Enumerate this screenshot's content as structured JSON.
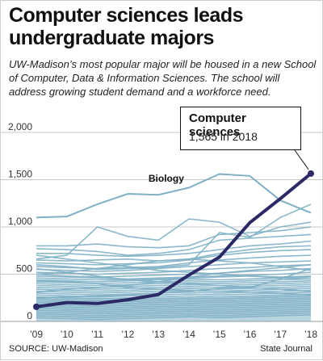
{
  "header": {
    "title": "Computer sciences leads undergraduate majors",
    "subtitle": "UW-Madison’s most popular major will be housed in a new School of Computer, Data & Information Sciences. The school will address growing student demand and a workforce need."
  },
  "footer": {
    "source": "SOURCE: UW-Madison",
    "credit": "State Journal"
  },
  "callout": {
    "title": "Computer sciences",
    "value": "1,565 in 2018"
  },
  "colors": {
    "highlight": "#2b2a66",
    "background_series": "#7fb0c5",
    "grid": "#c8c8c8"
  },
  "chart_data": {
    "type": "line",
    "x": [
      "’09",
      "’10",
      "’11",
      "’12",
      "’13",
      "’14",
      "’15",
      "’16",
      "’17",
      "’18"
    ],
    "ylim": [
      0,
      2000
    ],
    "yticks": [
      0,
      500,
      1000,
      1500,
      2000
    ],
    "ytick_labels": [
      "0",
      "500",
      "1,000",
      "1,500",
      "2,000"
    ],
    "grid": true,
    "highlight_series": {
      "name": "Computer sciences",
      "values": [
        155,
        200,
        190,
        230,
        285,
        490,
        680,
        1045,
        1300,
        1565
      ]
    },
    "labeled_series": {
      "name": "Biology",
      "values": [
        1100,
        1110,
        1240,
        1350,
        1340,
        1415,
        1560,
        1540,
        1280,
        1150
      ]
    },
    "other_series": [
      [
        660,
        700,
        1000,
        900,
        860,
        1085,
        1050,
        900,
        1000,
        1050
      ],
      [
        600,
        580,
        550,
        560,
        570,
        600,
        940,
        890,
        1100,
        1240
      ],
      [
        800,
        800,
        820,
        790,
        780,
        800,
        920,
        940,
        960,
        1000
      ],
      [
        770,
        760,
        740,
        700,
        720,
        760,
        860,
        880,
        900,
        920
      ],
      [
        720,
        720,
        700,
        690,
        700,
        720,
        760,
        800,
        820,
        850
      ],
      [
        650,
        640,
        650,
        660,
        640,
        660,
        720,
        760,
        790,
        800
      ],
      [
        620,
        610,
        600,
        610,
        620,
        650,
        700,
        730,
        750,
        760
      ],
      [
        580,
        570,
        560,
        570,
        580,
        620,
        650,
        670,
        690,
        700
      ],
      [
        550,
        540,
        530,
        540,
        560,
        580,
        600,
        620,
        630,
        640
      ],
      [
        520,
        510,
        500,
        510,
        520,
        540,
        560,
        570,
        590,
        600
      ],
      [
        500,
        480,
        470,
        480,
        490,
        500,
        510,
        530,
        540,
        560
      ],
      [
        480,
        470,
        460,
        450,
        460,
        470,
        480,
        490,
        500,
        520
      ],
      [
        460,
        450,
        440,
        440,
        450,
        460,
        470,
        480,
        470,
        480
      ],
      [
        440,
        430,
        420,
        430,
        440,
        450,
        440,
        450,
        460,
        470
      ],
      [
        420,
        410,
        400,
        410,
        420,
        430,
        420,
        430,
        440,
        450
      ],
      [
        400,
        390,
        380,
        390,
        400,
        410,
        400,
        410,
        420,
        430
      ],
      [
        380,
        370,
        360,
        370,
        380,
        390,
        380,
        390,
        400,
        410
      ],
      [
        360,
        350,
        340,
        350,
        360,
        370,
        360,
        370,
        380,
        390
      ],
      [
        340,
        330,
        320,
        330,
        340,
        350,
        340,
        350,
        360,
        370
      ],
      [
        320,
        310,
        300,
        310,
        320,
        330,
        320,
        330,
        340,
        350
      ],
      [
        300,
        290,
        280,
        290,
        300,
        310,
        300,
        310,
        320,
        330
      ],
      [
        280,
        270,
        260,
        270,
        280,
        290,
        280,
        290,
        300,
        310
      ],
      [
        260,
        250,
        240,
        250,
        260,
        270,
        260,
        270,
        280,
        290
      ],
      [
        240,
        230,
        220,
        230,
        240,
        250,
        240,
        250,
        260,
        270
      ],
      [
        220,
        210,
        200,
        210,
        220,
        230,
        220,
        230,
        240,
        250
      ],
      [
        200,
        190,
        180,
        190,
        200,
        210,
        200,
        210,
        220,
        230
      ],
      [
        180,
        170,
        160,
        170,
        180,
        190,
        180,
        190,
        200,
        210
      ],
      [
        160,
        150,
        140,
        150,
        160,
        170,
        160,
        170,
        180,
        190
      ],
      [
        140,
        130,
        120,
        130,
        140,
        150,
        140,
        150,
        160,
        170
      ],
      [
        120,
        110,
        100,
        110,
        120,
        130,
        120,
        130,
        140,
        150
      ],
      [
        100,
        90,
        80,
        90,
        100,
        110,
        100,
        110,
        120,
        130
      ],
      [
        80,
        70,
        60,
        70,
        80,
        90,
        80,
        90,
        100,
        110
      ],
      [
        60,
        50,
        40,
        50,
        60,
        70,
        60,
        70,
        80,
        90
      ],
      [
        40,
        30,
        20,
        30,
        40,
        50,
        40,
        50,
        60,
        70
      ],
      [
        310,
        340,
        360,
        380,
        420,
        470,
        510,
        540,
        570,
        600
      ],
      [
        250,
        260,
        270,
        280,
        300,
        320,
        350,
        360,
        450,
        560
      ],
      [
        430,
        420,
        400,
        360,
        340,
        330,
        320,
        310,
        300,
        280
      ],
      [
        560,
        520,
        480,
        440,
        420,
        400,
        380,
        360,
        340,
        320
      ],
      [
        700,
        660,
        620,
        580,
        540,
        520,
        500,
        480,
        460,
        450
      ],
      [
        500,
        520,
        560,
        600,
        640,
        660,
        640,
        620,
        580,
        540
      ]
    ]
  }
}
